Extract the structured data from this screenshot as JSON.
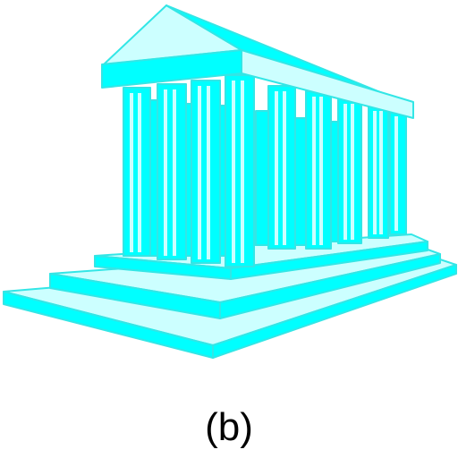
{
  "figure": {
    "caption": "(b)",
    "icon": "greek-temple-icon",
    "colors": {
      "primary": "#00FFFF",
      "light": "#CCFFFF",
      "outline": "#33E6E6",
      "background": "#FFFFFF",
      "caption_text": "#000000"
    }
  }
}
